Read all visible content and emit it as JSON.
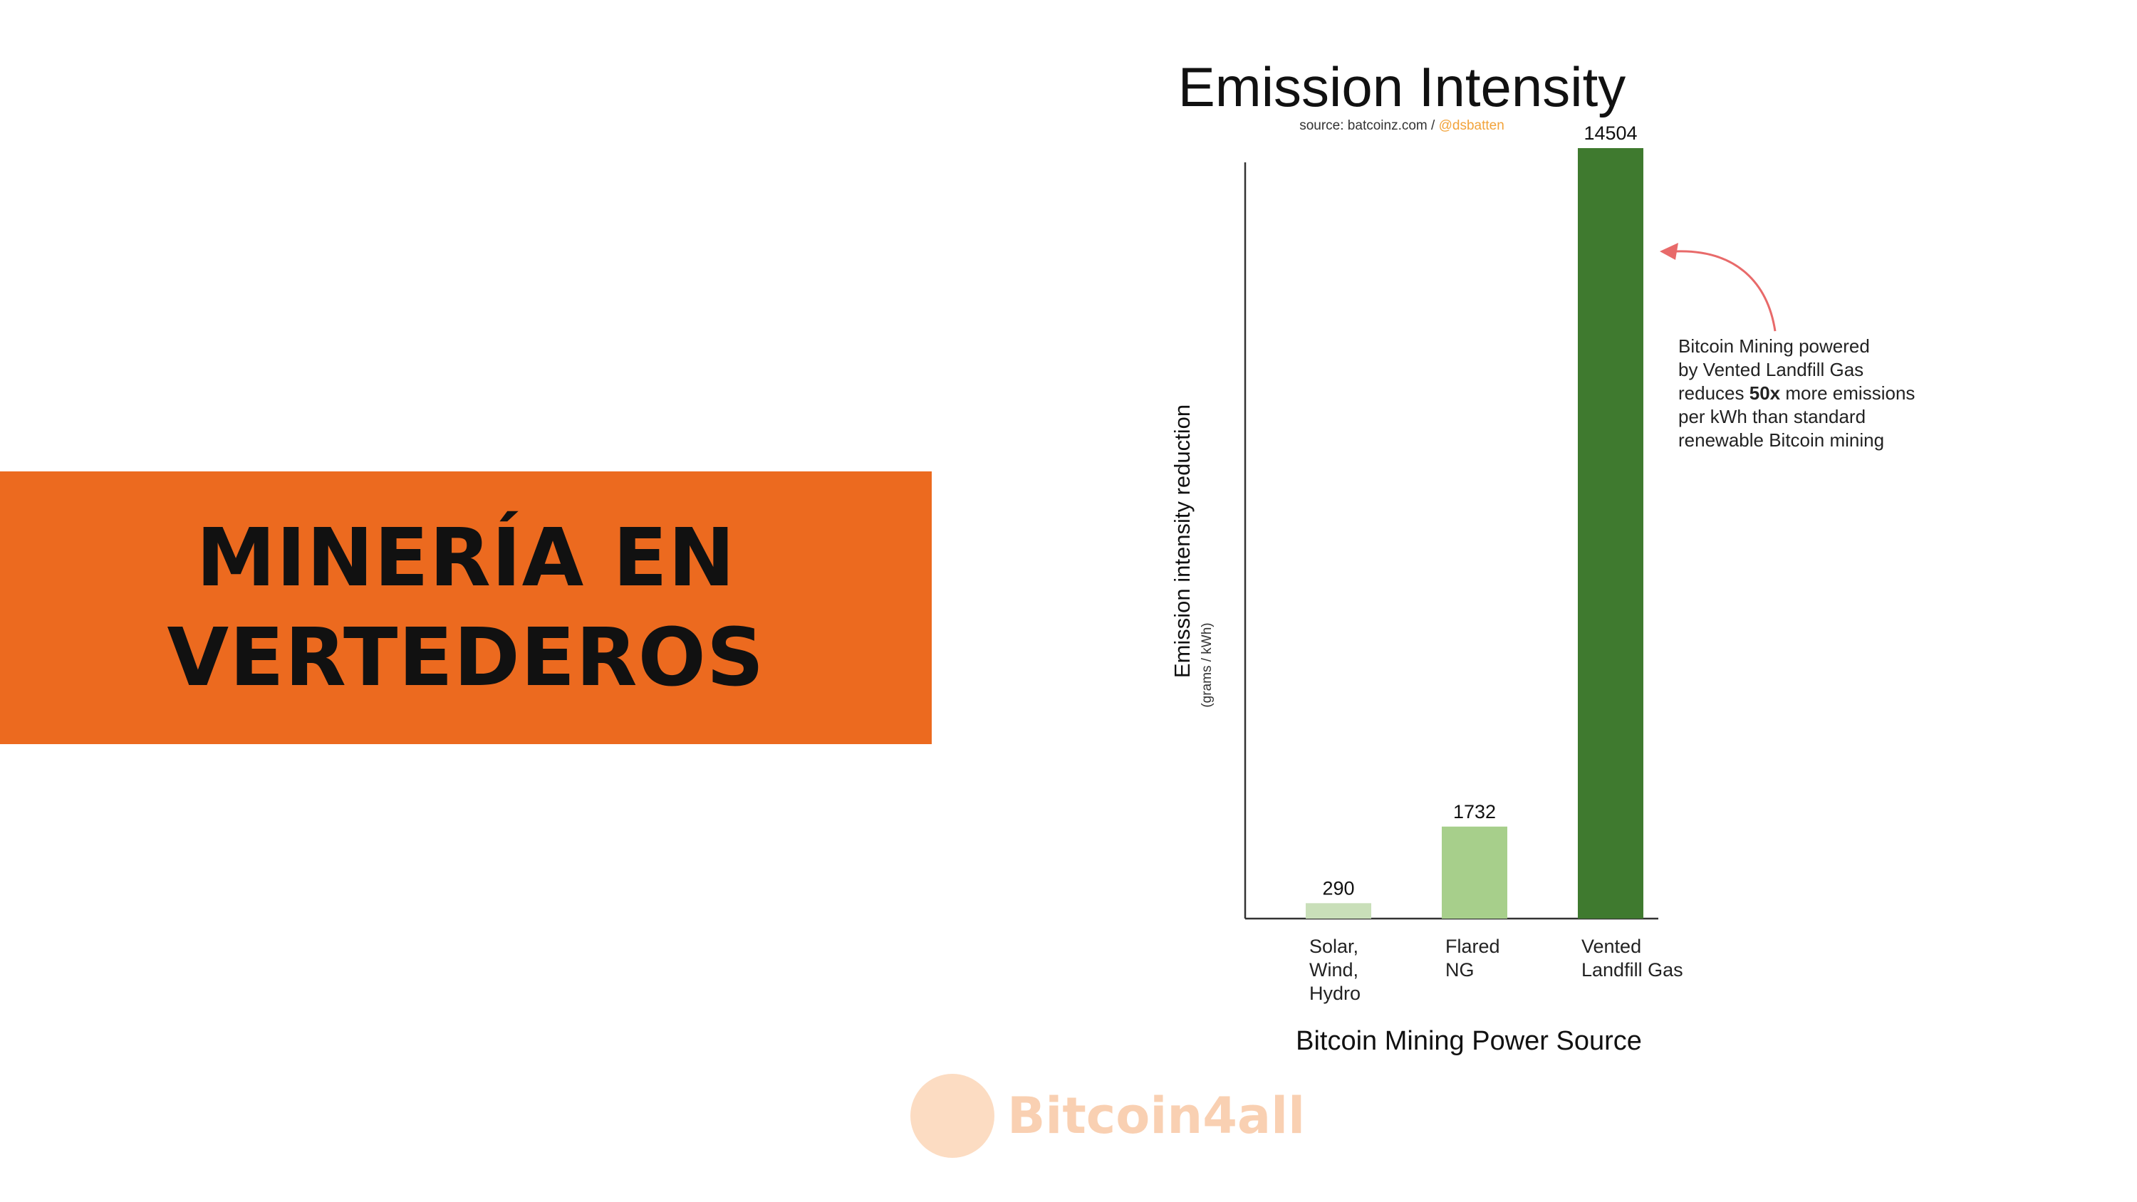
{
  "banner": {
    "line1": "MINERÍA EN",
    "line2": "VERTEDEROS"
  },
  "chart_data": {
    "type": "bar",
    "title": "Emission Intensity",
    "source_prefix": "source: batcoinz.com / ",
    "source_handle": "@dsbatten",
    "ylabel": "Emission intensity reduction",
    "ylabel_unit": "(grams / kWh)",
    "xlabel": "Bitcoin Mining Power Source",
    "ylim": [
      0,
      14504
    ],
    "grid": false,
    "categories": [
      {
        "label_lines": [
          "Solar,",
          "Wind,",
          "Hydro"
        ],
        "value": 290,
        "color": "#c9dfb9"
      },
      {
        "label_lines": [
          "Flared",
          "NG"
        ],
        "value": 1732,
        "color": "#a7cf8b"
      },
      {
        "label_lines": [
          "Vented",
          "Landfill Gas"
        ],
        "value": 14504,
        "color": "#3f7a2f"
      }
    ],
    "annotation": {
      "line1": "Bitcoin Mining powered",
      "line2": "by Vented Landfill Gas",
      "line3_pre": "reduces ",
      "line3_bold": "50x",
      "line3_post": " more emissions",
      "line4": "per kWh than standard",
      "line5": "renewable Bitcoin mining",
      "arrow_color": "#e86a6a"
    }
  },
  "watermark": {
    "text": "Bitcoin4all"
  }
}
